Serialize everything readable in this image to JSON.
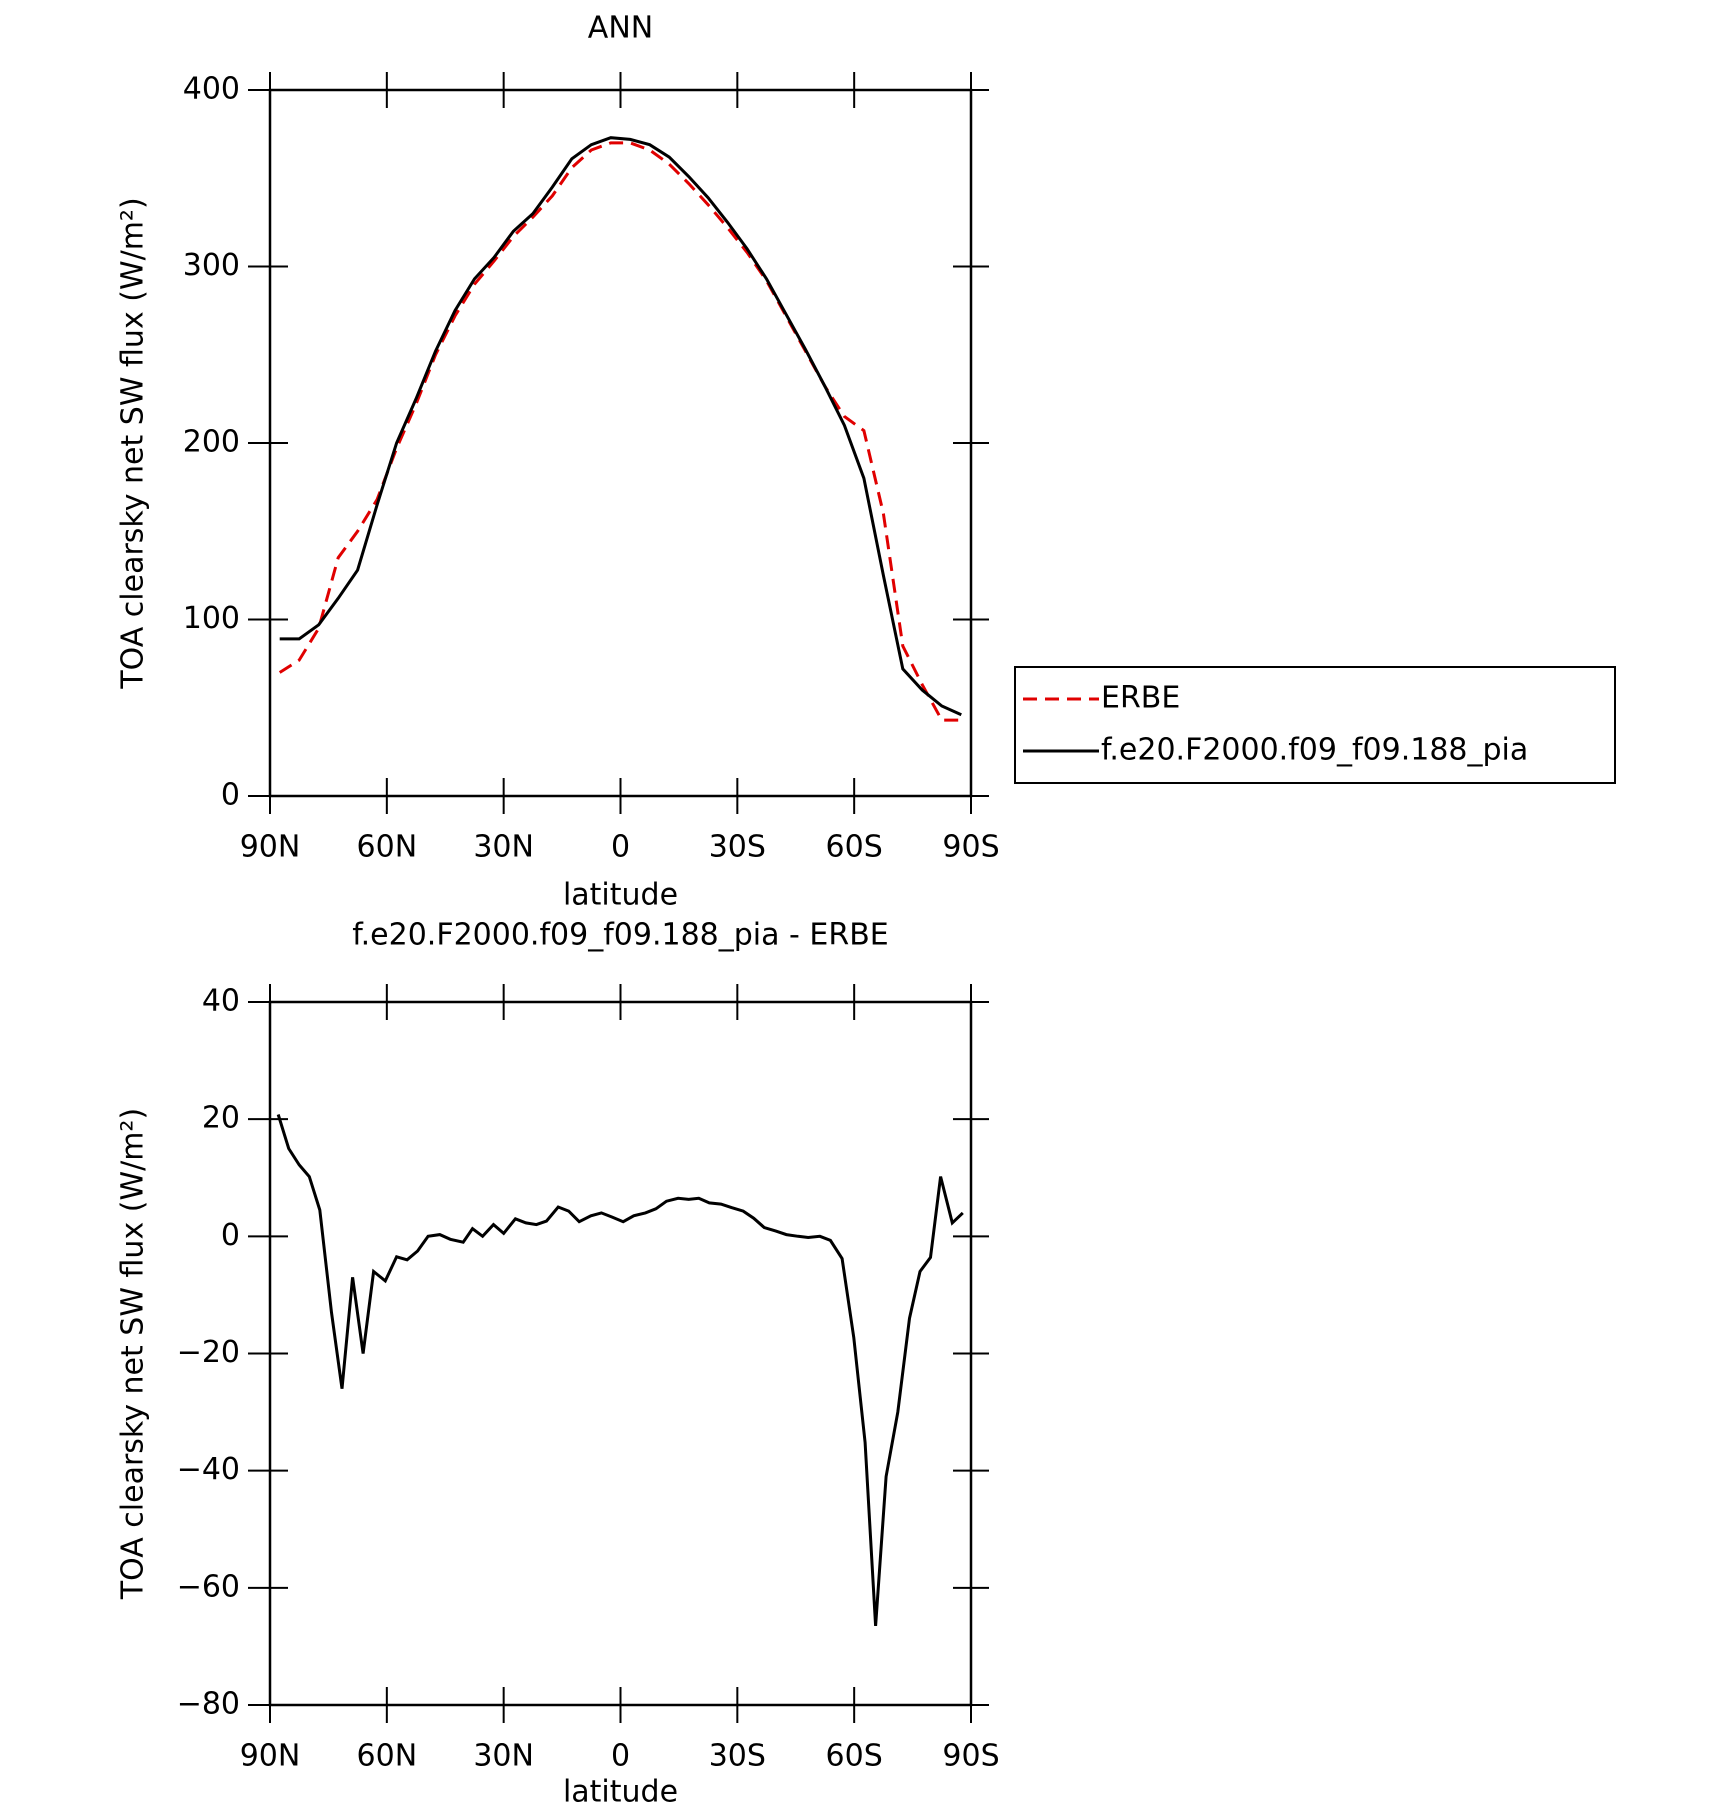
{
  "chart_data": [
    {
      "type": "line",
      "title": "ANN",
      "xlabel": "latitude",
      "ylabel": "TOA clearsky net SW flux (W/m²)",
      "x": [
        87.5,
        82.5,
        77.5,
        72.5,
        67.5,
        62.5,
        57.5,
        52.5,
        47.5,
        42.5,
        37.5,
        32.5,
        27.5,
        22.5,
        17.5,
        12.5,
        7.5,
        2.5,
        -2.5,
        -7.5,
        -12.5,
        -17.5,
        -22.5,
        -27.5,
        -32.5,
        -37.5,
        -42.5,
        -47.5,
        -52.5,
        -57.5,
        -62.5,
        -67.5,
        -72.5,
        -77.5,
        -82.5,
        -87.5
      ],
      "series": [
        {
          "name": "ERBE",
          "color": "#e00000",
          "linestyle": "dashed",
          "values": [
            70,
            77,
            95,
            135,
            150,
            168,
            197,
            222,
            250,
            272,
            290,
            303,
            317,
            328,
            340,
            356,
            366,
            370,
            370,
            366,
            358,
            347,
            335,
            322,
            308,
            292,
            272,
            252,
            232,
            215,
            207,
            160,
            85,
            63,
            43,
            43
          ]
        },
        {
          "name": "f.e20.F2000.f09_f09.188_pia",
          "color": "#000000",
          "linestyle": "solid",
          "values": [
            89,
            89,
            97,
            112,
            128,
            165,
            200,
            225,
            252,
            275,
            293,
            305,
            320,
            330,
            345,
            361,
            369,
            373,
            372,
            369,
            362,
            351,
            339,
            325,
            310,
            293,
            273,
            253,
            232,
            210,
            180,
            125,
            72,
            60,
            51,
            46
          ]
        }
      ],
      "xlim": [
        90,
        -90
      ],
      "xticks": [
        {
          "value": 90,
          "label": "90N"
        },
        {
          "value": 60,
          "label": "60N"
        },
        {
          "value": 30,
          "label": "30N"
        },
        0,
        {
          "value": -30,
          "label": "30S"
        },
        {
          "value": -60,
          "label": "60S"
        },
        {
          "value": -90,
          "label": "90S"
        }
      ],
      "ylim": [
        0,
        400
      ],
      "yticks": [
        0,
        100,
        200,
        300,
        400
      ],
      "grid": false,
      "legend": "outside right"
    },
    {
      "type": "line",
      "title": "f.e20.F2000.f09_f09.188_pia - ERBE",
      "xlabel": "latitude",
      "ylabel": "TOA clearsky net SW flux (W/m²)",
      "x": [
        87.9,
        85.2,
        82.5,
        79.9,
        77.2,
        74.2,
        71.5,
        68.8,
        66.1,
        63.4,
        60.4,
        57.5,
        54.8,
        52.1,
        49.4,
        46.4,
        43.7,
        40.4,
        38,
        35.4,
        32.6,
        30,
        27,
        24.3,
        21.6,
        19,
        16,
        13.3,
        10.6,
        7.6,
        4.9,
        2.2,
        -0.7,
        -3.4,
        -6.4,
        -9.1,
        -11.8,
        -14.8,
        -17.5,
        -20.1,
        -22.8,
        -25.8,
        -28.5,
        -31.5,
        -34.2,
        -36.9,
        -39.9,
        -42.6,
        -45.6,
        -48.2,
        -51.2,
        -53.9,
        -56.9,
        -59.9,
        -62.8,
        -65.5,
        -68.2,
        -71.2,
        -74.2,
        -76.9,
        -79.6,
        -82.2,
        -85.2,
        -87.9
      ],
      "series": [
        {
          "color": "#000000",
          "linestyle": "solid",
          "values": [
            20.8,
            15,
            12.2,
            10.2,
            4.5,
            -13,
            -26,
            -7,
            -20,
            -6,
            -7.6,
            -3.5,
            -4,
            -2.5,
            0,
            0.3,
            -0.5,
            -1,
            1.3,
            0,
            2,
            0.5,
            3,
            2.3,
            2,
            2.6,
            5,
            4.3,
            2.5,
            3.5,
            4,
            3.3,
            2.5,
            3.5,
            4,
            4.7,
            6,
            6.5,
            6.3,
            6.5,
            5.7,
            5.5,
            4.9,
            4.3,
            3.1,
            1.5,
            0.9,
            0.3,
            0,
            -0.2,
            0,
            -0.7,
            -3.8,
            -17.3,
            -35.2,
            -66.5,
            -41,
            -30,
            -14,
            -6,
            -3.6,
            10.2,
            2.3,
            4
          ]
        }
      ],
      "xlim": [
        90,
        -90
      ],
      "xticks": [
        {
          "value": 90,
          "label": "90N"
        },
        {
          "value": 60,
          "label": "60N"
        },
        {
          "value": 30,
          "label": "30N"
        },
        0,
        {
          "value": -30,
          "label": "30S"
        },
        {
          "value": -60,
          "label": "60S"
        },
        {
          "value": -90,
          "label": "90S"
        }
      ],
      "ylim": [
        -80,
        40
      ],
      "yticks": [
        {
          "value": -80,
          "label": "−80"
        },
        {
          "value": -60,
          "label": "−60"
        },
        {
          "value": -40,
          "label": "−40"
        },
        {
          "value": -20,
          "label": "−20"
        },
        0,
        20,
        40
      ],
      "grid": false
    }
  ]
}
